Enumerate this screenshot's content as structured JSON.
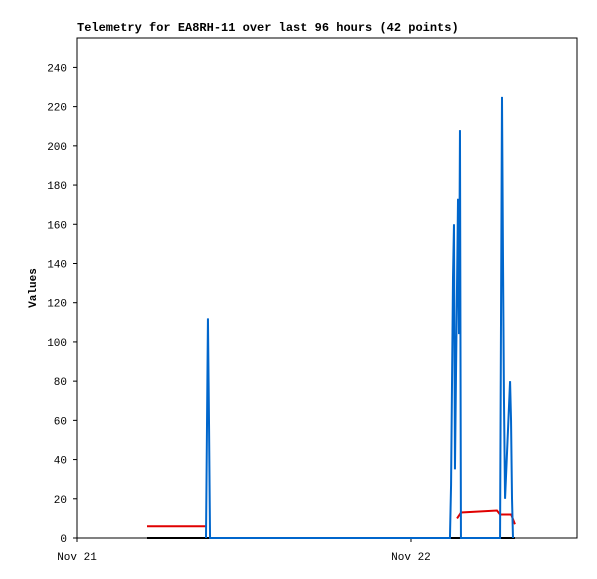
{
  "chart_data": {
    "type": "line",
    "title": "Telemetry for EA8RH-11 over last 96 hours (42 points)",
    "ylabel": "Values",
    "xlim": [
      0,
      35.93
    ],
    "xticks": [
      {
        "value": 0,
        "label": "Nov 21"
      },
      {
        "value": 24,
        "label": "Nov 22"
      }
    ],
    "ylim": [
      0,
      255
    ],
    "yticks": [
      0,
      20,
      40,
      60,
      80,
      100,
      120,
      140,
      160,
      180,
      200,
      220,
      240
    ],
    "series": [
      {
        "color": "#000000",
        "x": [
          5.03,
          31.47
        ],
        "values": [
          0,
          0
        ]
      },
      {
        "color": "#e00000",
        "x": [
          5.03,
          9.34,
          20,
          27.31,
          27.6,
          30.18,
          30.4,
          31.2,
          31.47
        ],
        "values": [
          6,
          6,
          null,
          10,
          13,
          14,
          12,
          12,
          7
        ]
      },
      {
        "color": "#0066cc",
        "x": [
          9.27,
          9.34,
          9.41,
          9.49,
          9.56,
          26.8,
          26.88,
          26.95,
          27.02,
          27.09,
          27.16,
          27.23,
          27.38,
          27.45,
          27.52,
          27.59,
          30.4,
          30.47,
          30.54,
          30.61,
          30.68,
          30.76,
          31.12,
          31.19,
          31.26,
          31.33
        ],
        "values": [
          0,
          56,
          112,
          56,
          0,
          0,
          27,
          80,
          133,
          160,
          35,
          80,
          173,
          104,
          208,
          0,
          0,
          112,
          225,
          144,
          72,
          20,
          80,
          60,
          20,
          0
        ]
      }
    ]
  }
}
